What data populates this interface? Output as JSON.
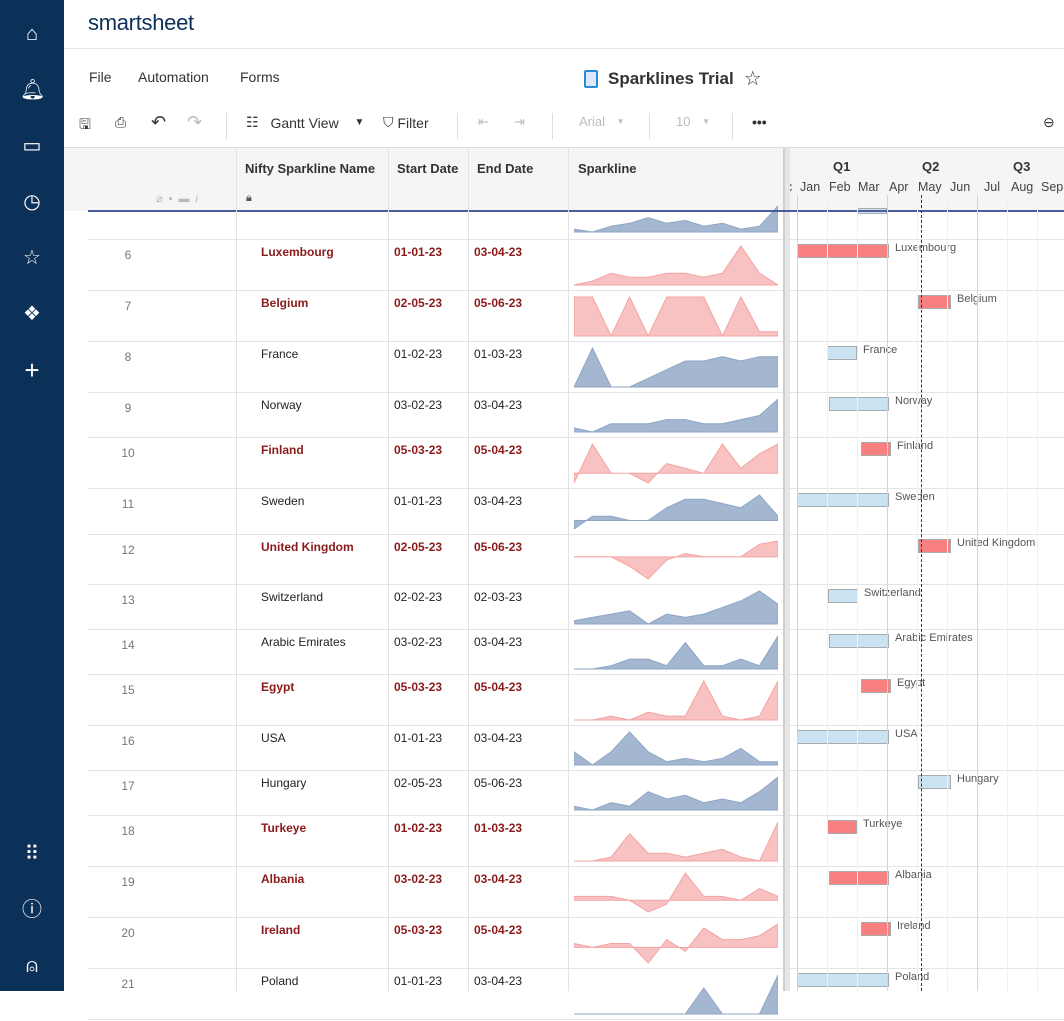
{
  "app": {
    "brand": "smartsheet",
    "title": "Sparklines Trial"
  },
  "menu": [
    "File",
    "Automation",
    "Forms"
  ],
  "toolbar": {
    "view": "Gantt View",
    "filter": "Filter",
    "font": "Arial",
    "size": "10"
  },
  "columns": {
    "name": "Nifty Sparkline Name",
    "start": "Start Date",
    "end": "End Date",
    "sparkline": "Sparkline"
  },
  "gantt": {
    "quarters": [
      "Q1",
      "Q2",
      "Q3"
    ],
    "months": [
      "c",
      "Jan",
      "Feb",
      "Mar",
      "Apr",
      "May",
      "Jun",
      "Jul",
      "Aug",
      "Sep"
    ],
    "today": "2023-05-05"
  },
  "colors": {
    "red_spark": "#f9c2c2",
    "blue_spark": "#a4b7d1",
    "red_bar": "#f88080",
    "blue_bar": "#c9e3f3",
    "nav": "#0c3159"
  },
  "partial_row": {
    "spark": [
      1,
      0,
      2,
      3,
      5,
      3,
      4,
      2,
      3,
      1,
      2,
      9
    ],
    "start": "2023-03-01",
    "end": "2023-04-01",
    "highlight": false
  },
  "rows": [
    {
      "num": "6",
      "name": "Luxembourg",
      "start": "01-01-23",
      "end": "03-04-23",
      "highlight": true,
      "spark": [
        0,
        1,
        3,
        2,
        2,
        3,
        3,
        2,
        3,
        10,
        3,
        0
      ]
    },
    {
      "num": "7",
      "name": "Belgium",
      "start": "02-05-23",
      "end": "05-06-23",
      "highlight": true,
      "spark": [
        9,
        9,
        0,
        9,
        0,
        9,
        9,
        9,
        0,
        9,
        1,
        1
      ]
    },
    {
      "num": "8",
      "name": "France",
      "start": "01-02-23",
      "end": "01-03-23",
      "highlight": false,
      "spark": [
        0,
        9,
        0,
        0,
        2,
        4,
        6,
        6,
        7,
        6,
        7,
        7
      ]
    },
    {
      "num": "9",
      "name": "Norway",
      "start": "03-02-23",
      "end": "03-04-23",
      "highlight": false,
      "spark": [
        1,
        0,
        2,
        2,
        2,
        3,
        3,
        2,
        2,
        3,
        4,
        8
      ]
    },
    {
      "num": "10",
      "name": "Finland",
      "start": "05-03-23",
      "end": "05-04-23",
      "highlight": true,
      "spark": [
        -2,
        6,
        0,
        0,
        -2,
        2,
        1,
        0,
        6,
        1,
        4,
        6
      ]
    },
    {
      "num": "11",
      "name": "Sweden",
      "start": "01-01-23",
      "end": "03-04-23",
      "highlight": false,
      "spark": [
        -2,
        1,
        1,
        0,
        0,
        3,
        5,
        5,
        4,
        3,
        6,
        1
      ]
    },
    {
      "num": "12",
      "name": "United Kingdom",
      "start": "02-05-23",
      "end": "05-06-23",
      "highlight": true,
      "spark": [
        0,
        0,
        0,
        -3,
        -7,
        -1,
        1,
        0,
        0,
        0,
        4,
        5
      ]
    },
    {
      "num": "13",
      "name": "Switzerland",
      "start": "02-02-23",
      "end": "02-03-23",
      "highlight": false,
      "spark": [
        1,
        2,
        3,
        4,
        0,
        3,
        2,
        3,
        5,
        7,
        10,
        6
      ]
    },
    {
      "num": "14",
      "name": "Arabic Emirates",
      "start": "03-02-23",
      "end": "03-04-23",
      "highlight": false,
      "spark": [
        0,
        0,
        1,
        3,
        3,
        1,
        8,
        1,
        1,
        3,
        1,
        10
      ]
    },
    {
      "num": "15",
      "name": "Egypt",
      "start": "05-03-23",
      "end": "05-04-23",
      "highlight": true,
      "spark": [
        0,
        0,
        1,
        0,
        2,
        1,
        1,
        10,
        1,
        0,
        1,
        10
      ]
    },
    {
      "num": "16",
      "name": "USA",
      "start": "01-01-23",
      "end": "03-04-23",
      "highlight": false,
      "spark": [
        4,
        0,
        4,
        10,
        4,
        1,
        2,
        1,
        2,
        5,
        1,
        1
      ]
    },
    {
      "num": "17",
      "name": "Hungary",
      "start": "02-05-23",
      "end": "05-06-23",
      "highlight": false,
      "spark": [
        1,
        0,
        2,
        1,
        5,
        3,
        4,
        2,
        3,
        2,
        5,
        9
      ]
    },
    {
      "num": "18",
      "name": "Turkeye",
      "start": "01-02-23",
      "end": "01-03-23",
      "highlight": true,
      "spark": [
        0,
        0,
        1,
        7,
        2,
        2,
        1,
        2,
        3,
        1,
        0,
        10
      ]
    },
    {
      "num": "19",
      "name": "Albania",
      "start": "03-02-23",
      "end": "03-04-23",
      "highlight": true,
      "spark": [
        1,
        1,
        1,
        0,
        -3,
        -1,
        7,
        1,
        1,
        0,
        3,
        1
      ]
    },
    {
      "num": "20",
      "name": "Ireland",
      "start": "05-03-23",
      "end": "05-04-23",
      "highlight": true,
      "spark": [
        1,
        0,
        1,
        1,
        -4,
        2,
        -1,
        5,
        2,
        2,
        3,
        6
      ]
    },
    {
      "num": "21",
      "name": "Poland",
      "start": "01-01-23",
      "end": "03-04-23",
      "highlight": false,
      "spark": [
        0,
        0,
        0,
        0,
        0,
        0,
        0,
        2,
        0,
        0,
        0,
        3
      ]
    }
  ]
}
